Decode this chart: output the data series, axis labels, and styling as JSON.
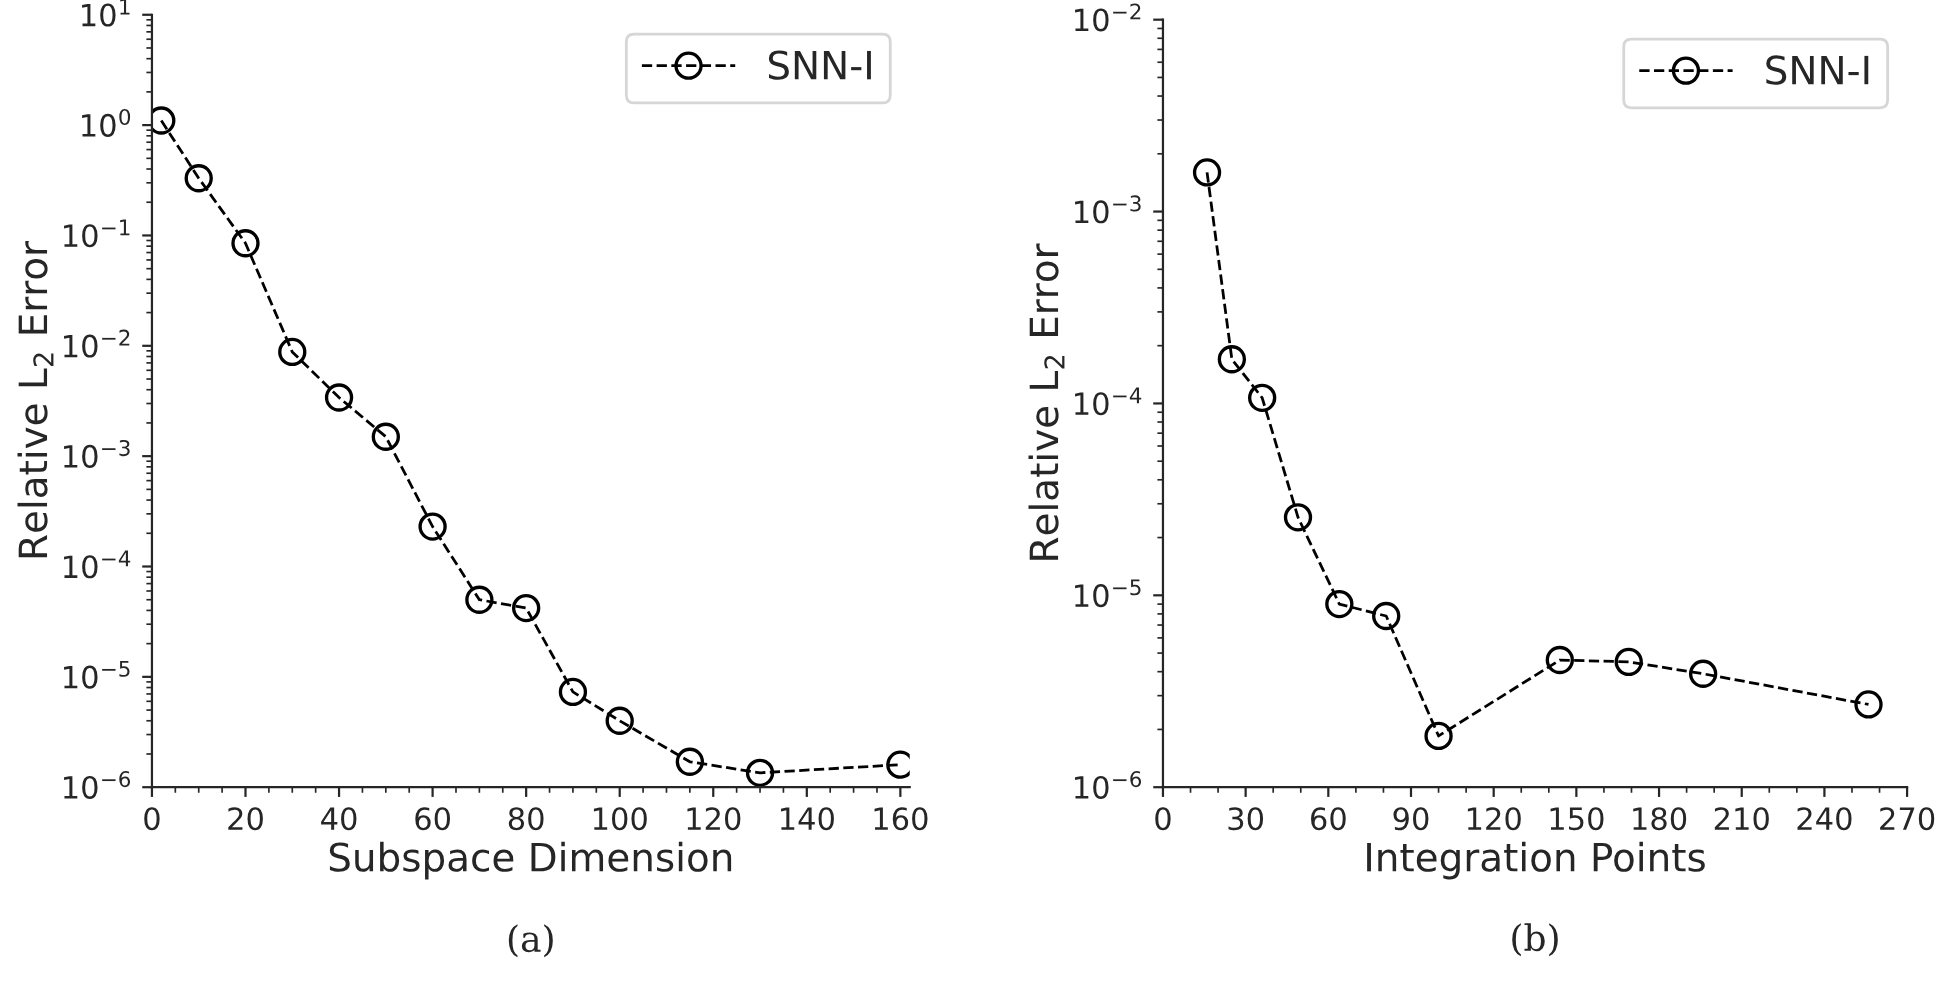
{
  "chart_data": [
    {
      "type": "line",
      "xlabel": "Subspace Dimension",
      "ylabel": "Relative L$_{2}$ Error",
      "log": "y",
      "marker": "circle",
      "line_style": "dashed",
      "legend": "top right",
      "grid": false,
      "x": [
        2,
        10,
        20,
        30,
        40,
        50,
        60,
        70,
        80,
        90,
        100,
        115,
        130,
        160
      ],
      "series": [
        {
          "name": "SNN-I",
          "color": "#000000",
          "values": [
            1.1,
            0.33,
            0.085,
            0.0088,
            0.0034,
            0.0015,
            0.00023,
            5e-05,
            4.2e-05,
            7.3e-06,
            4e-06,
            1.7e-06,
            1.35e-06,
            1.6e-06
          ]
        }
      ],
      "xlim": [
        0,
        162
      ],
      "xticks": [
        0,
        20,
        40,
        60,
        80,
        100,
        120,
        140,
        160
      ],
      "ylim": [
        1e-06,
        10
      ],
      "yticks": [
        {
          "value": 1e-06,
          "label": "10$^{−6}$"
        },
        {
          "value": 1e-05,
          "label": "10$^{−5}$"
        },
        {
          "value": 0.0001,
          "label": "10$^{−4}$"
        },
        {
          "value": 0.001,
          "label": "10$^{−3}$"
        },
        {
          "value": 0.01,
          "label": "10$^{−2}$"
        },
        {
          "value": 0.1,
          "label": "10$^{−1}$"
        },
        {
          "value": 1,
          "label": "10$^{0}$"
        },
        {
          "value": 10,
          "label": "10$^{1}$"
        }
      ],
      "annotations": [
        "(a)"
      ]
    },
    {
      "type": "line",
      "xlabel": "Integration Points",
      "ylabel": "Relative L$_{2}$ Error",
      "log": "y",
      "marker": "circle",
      "line_style": "dashed",
      "legend": "top right",
      "grid": false,
      "x": [
        16,
        25,
        36,
        49,
        64,
        81,
        100,
        144,
        169,
        196,
        256
      ],
      "series": [
        {
          "name": "SNN-I",
          "color": "#000000",
          "values": [
            0.0016,
            0.00017,
            0.000107,
            2.55e-05,
            9e-06,
            7.8e-06,
            1.85e-06,
            4.6e-06,
            4.5e-06,
            3.9e-06,
            2.7e-06
          ]
        }
      ],
      "xlim": [
        0,
        270
      ],
      "xticks": [
        0,
        30,
        60,
        90,
        120,
        150,
        180,
        210,
        240,
        270
      ],
      "ylim": [
        1e-06,
        0.01
      ],
      "yticks": [
        {
          "value": 1e-06,
          "label": "10$^{−6}$"
        },
        {
          "value": 1e-05,
          "label": "10$^{−5}$"
        },
        {
          "value": 0.0001,
          "label": "10$^{−4}$"
        },
        {
          "value": 0.001,
          "label": "10$^{−3}$"
        },
        {
          "value": 0.01,
          "label": "10$^{−2}$"
        }
      ],
      "annotations": [
        "(b)"
      ]
    }
  ]
}
